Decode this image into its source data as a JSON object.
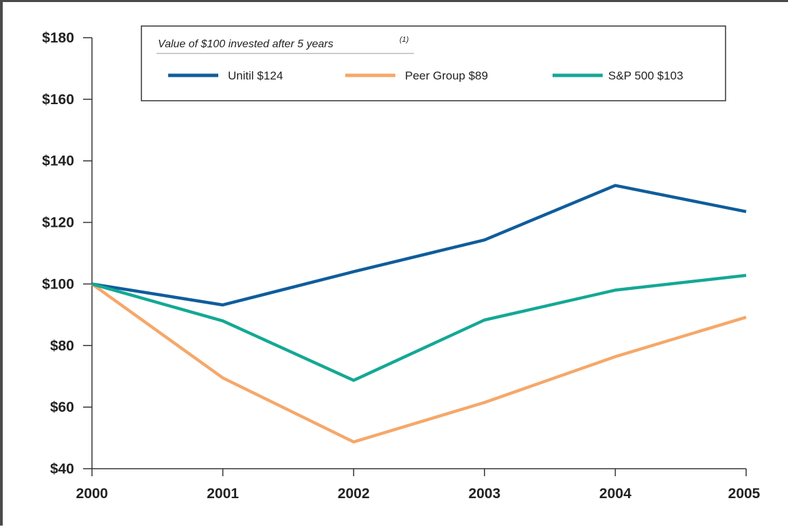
{
  "chart_data": {
    "type": "line",
    "title": "",
    "xlabel": "",
    "ylabel": "",
    "x": [
      "2000",
      "2001",
      "2002",
      "2003",
      "2004",
      "2005"
    ],
    "ylim": [
      40,
      180
    ],
    "yticks": [
      "$40",
      "$60",
      "$80",
      "$100",
      "$120",
      "$140",
      "$160",
      "$180"
    ],
    "ytick_values": [
      40,
      60,
      80,
      100,
      120,
      140,
      160,
      180
    ],
    "grid": false,
    "legend": {
      "title": "Value of $100 invested after 5 years",
      "title_footnote": "(1)",
      "placement": "top"
    },
    "series": [
      {
        "name": "Unitil $124",
        "color": "#0f5d9c",
        "values": [
          100,
          93.2,
          104,
          114.3,
          132,
          123.5
        ]
      },
      {
        "name": "Peer Group $89",
        "color": "#f5a86a",
        "values": [
          100,
          69.5,
          48.7,
          61.5,
          76.4,
          89.2
        ]
      },
      {
        "name": "S&P 500 $103",
        "color": "#14a895",
        "values": [
          100,
          88,
          68.7,
          88.3,
          98,
          102.8
        ]
      }
    ]
  }
}
